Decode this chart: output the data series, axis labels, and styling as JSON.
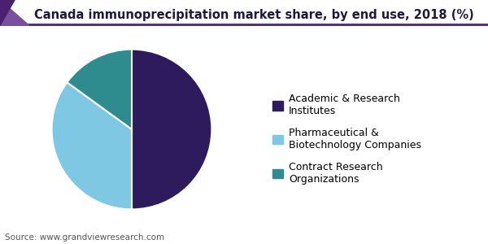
{
  "title": "Canada immunoprecipitation market share, by end use, 2018 (%)",
  "slices": [
    {
      "label": "Academic & Research\nInstitutes",
      "value": 50,
      "color": "#2d1b5e"
    },
    {
      "label": "Pharmaceutical &\nBiotechnology Companies",
      "value": 35,
      "color": "#7ec8e3"
    },
    {
      "label": "Contract Research\nOrganizations",
      "value": 15,
      "color": "#2e8b8e"
    }
  ],
  "startangle": 90,
  "counterclock": false,
  "source_text": "Source: www.grandviewresearch.com",
  "background_color": "#ffffff",
  "header_bar_color": "#5c2d82",
  "title_fontsize": 10.5,
  "legend_fontsize": 9,
  "source_fontsize": 7.5,
  "title_color": "#1a1a3e",
  "edge_color": "#ffffff",
  "edge_linewidth": 1.5
}
